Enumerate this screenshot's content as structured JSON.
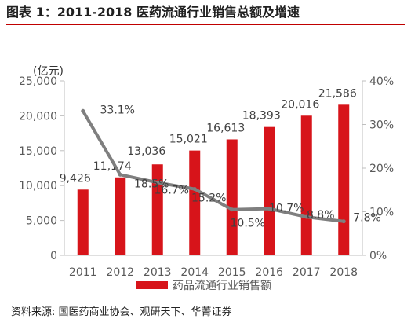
{
  "title": "图表 1：2011-2018 医药流通行业销售总额及增速",
  "source": "资料来源: 国医药商业协会、观研天下、华菁证券",
  "chart_data": {
    "type": "bar",
    "categories": [
      "2011",
      "2012",
      "2013",
      "2014",
      "2015",
      "2016",
      "2017",
      "2018"
    ],
    "series": [
      {
        "name": "药品流通行业销售额",
        "type": "bar",
        "axis": "left",
        "values": [
          9426,
          11174,
          13036,
          15021,
          16613,
          18393,
          20016,
          21586
        ],
        "labels": [
          "9,426",
          "11,174",
          "13,036",
          "15,021",
          "16,613",
          "18,393",
          "20,016",
          "21,586"
        ]
      },
      {
        "type": "line",
        "axis": "right",
        "values": [
          33.1,
          18.5,
          16.7,
          15.2,
          10.5,
          10.7,
          8.8,
          7.8
        ],
        "labels": [
          "33.1%",
          "18.5%",
          "16.7%",
          "15.2%",
          "10.5%",
          "10.7%",
          "8.8%",
          "7.8%"
        ]
      }
    ],
    "ylabel": "(亿元)",
    "ylim": [
      0,
      25000
    ],
    "yticks": [
      "0",
      "5,000",
      "10,000",
      "15,000",
      "20,000",
      "25,000"
    ],
    "y2lim": [
      0,
      40
    ],
    "y2ticks": [
      "0%",
      "10%",
      "20%",
      "30%",
      "40%"
    ],
    "legend": "bottom",
    "grid": false
  },
  "colors": {
    "bar": "#d7141a",
    "line": "#7f7f7f",
    "title_rule": "#c00000",
    "axis": "#bfbfbf",
    "tick_text": "#595959",
    "label_text": "#404040"
  }
}
